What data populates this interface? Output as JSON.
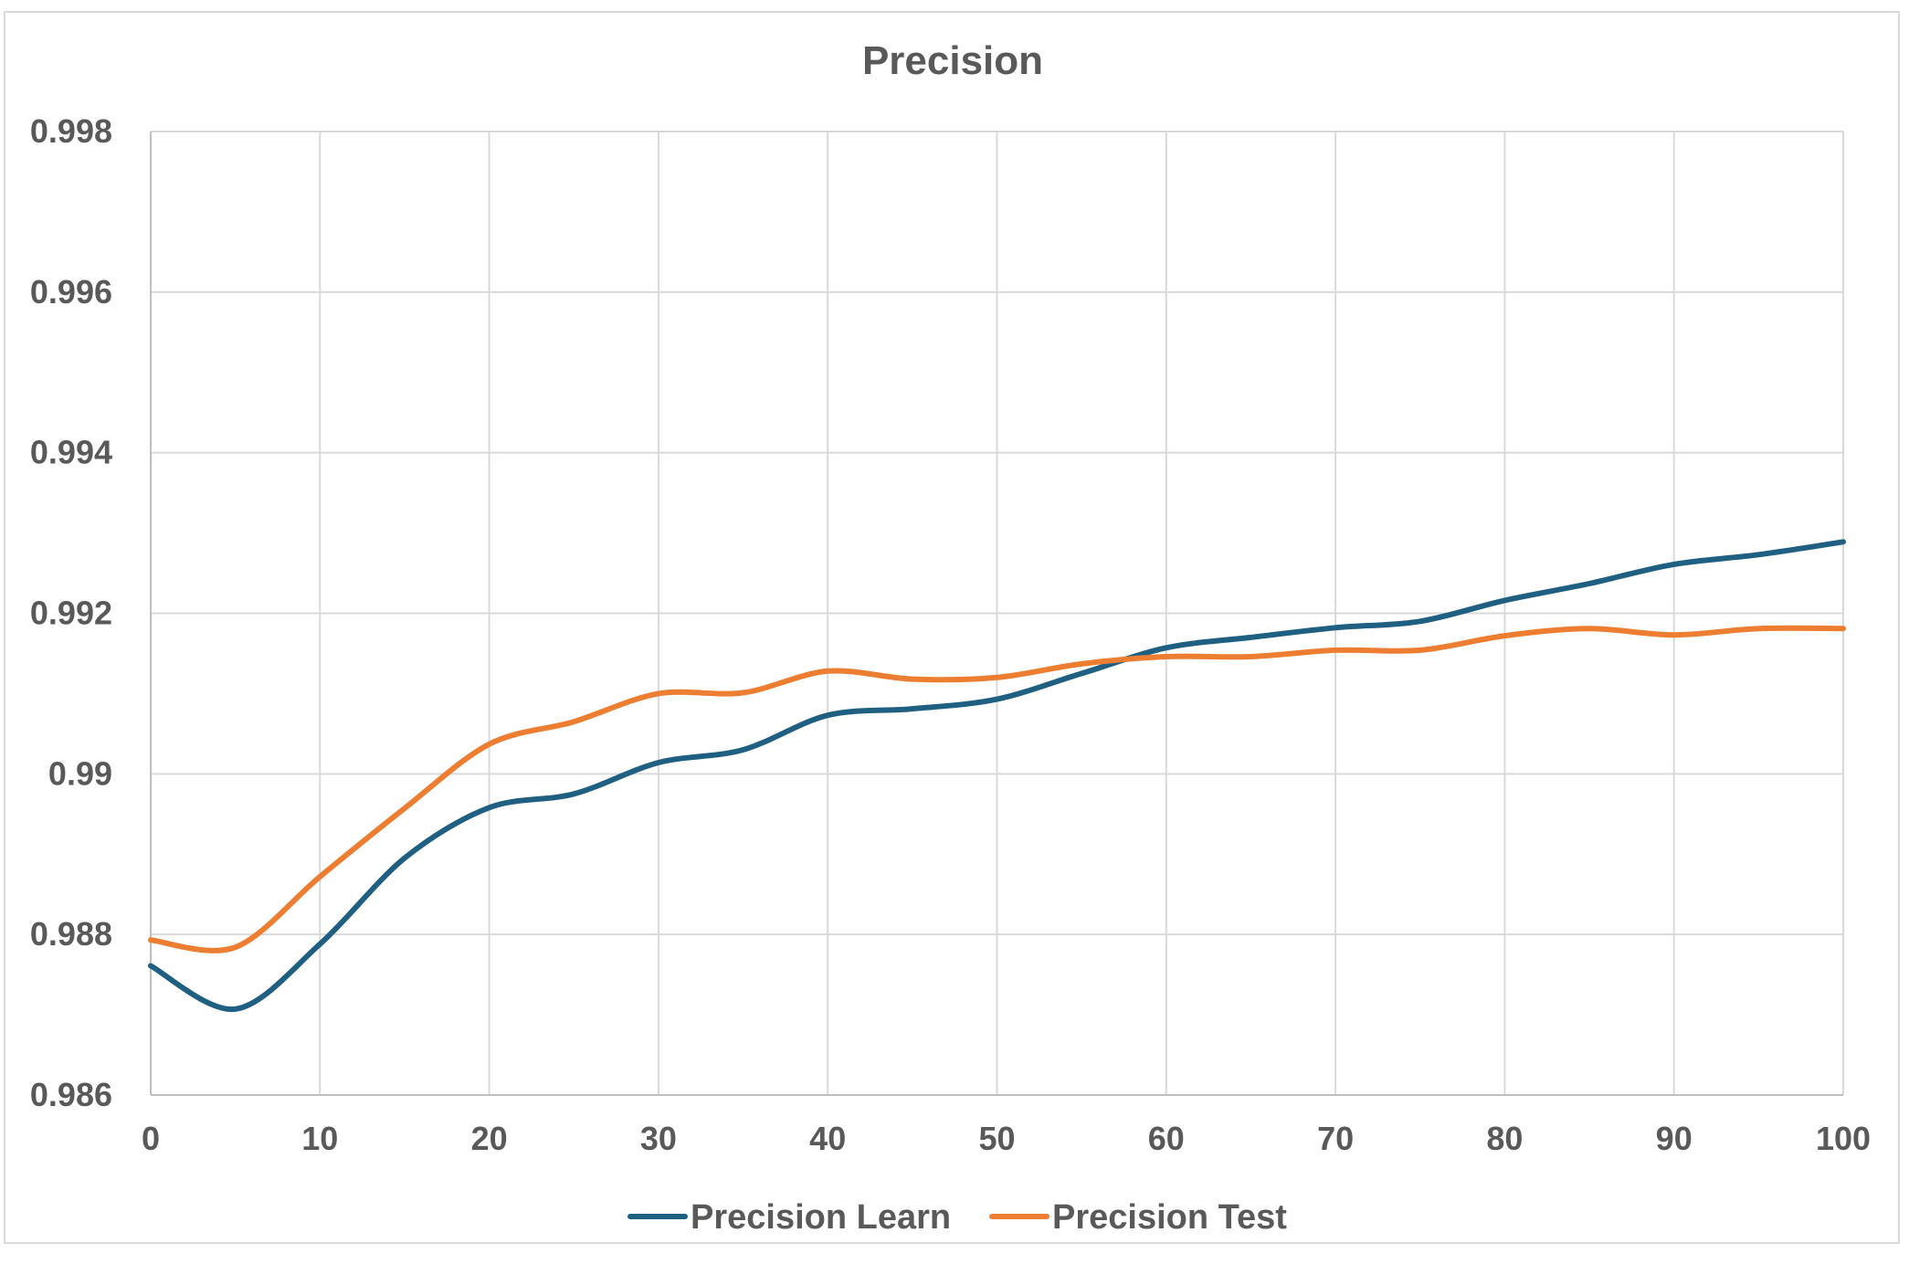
{
  "chart_data": {
    "type": "line",
    "title": "Precision",
    "xlabel": "",
    "ylabel": "",
    "xlim": [
      0,
      100
    ],
    "ylim": [
      0.986,
      0.998
    ],
    "x_ticks": [
      0,
      10,
      20,
      30,
      40,
      50,
      60,
      70,
      80,
      90,
      100
    ],
    "x_tick_labels": [
      "0",
      "10",
      "20",
      "30",
      "40",
      "50",
      "60",
      "70",
      "80",
      "90",
      "100"
    ],
    "y_ticks": [
      0.986,
      0.988,
      0.99,
      0.992,
      0.994,
      0.996,
      0.998
    ],
    "y_tick_labels": [
      "0.986",
      "0.988",
      "0.99",
      "0.992",
      "0.994",
      "0.996",
      "0.998"
    ],
    "grid": true,
    "legend_position": "bottom",
    "x": [
      0,
      5,
      10,
      15,
      20,
      25,
      30,
      35,
      40,
      45,
      50,
      55,
      60,
      65,
      70,
      75,
      80,
      85,
      90,
      95,
      100
    ],
    "series": [
      {
        "name": "Precision Learn",
        "color": "#1f5f82",
        "values": [
          0.98761,
          0.98707,
          0.98788,
          0.98895,
          0.98958,
          0.98975,
          0.99014,
          0.9903,
          0.99073,
          0.99081,
          0.99093,
          0.99125,
          0.99157,
          0.9917,
          0.99182,
          0.9919,
          0.99216,
          0.99237,
          0.99261,
          0.99273,
          0.99289
        ]
      },
      {
        "name": "Precision Test",
        "color": "#ed7d31",
        "values": [
          0.98793,
          0.98784,
          0.98872,
          0.98957,
          0.99037,
          0.99065,
          0.991,
          0.99101,
          0.99128,
          0.99118,
          0.9912,
          0.99137,
          0.99146,
          0.99146,
          0.99154,
          0.99154,
          0.99172,
          0.99181,
          0.99173,
          0.99181,
          0.99181
        ]
      }
    ]
  }
}
